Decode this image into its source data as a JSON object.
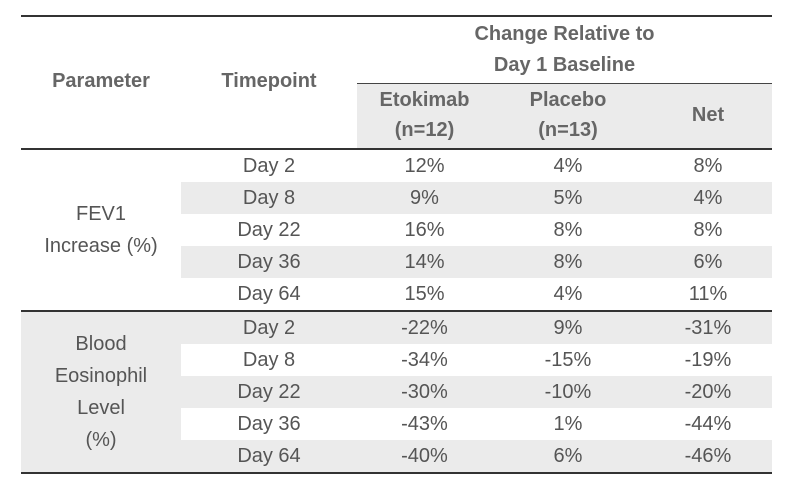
{
  "header": {
    "parameter": "Parameter",
    "timepoint": "Timepoint",
    "change_line1": "Change Relative to",
    "change_line2": "Day 1 Baseline",
    "col_etokimab_1": "Etokimab",
    "col_etokimab_2": "(n=12)",
    "col_placebo_1": "Placebo",
    "col_placebo_2": "(n=13)",
    "col_net": "Net"
  },
  "groups": [
    {
      "label_lines": [
        "FEV1",
        "Increase (%)"
      ],
      "rows": [
        {
          "timepoint": "Day 2",
          "etokimab": "12%",
          "placebo": "4%",
          "net": "8%"
        },
        {
          "timepoint": "Day 8",
          "etokimab": "9%",
          "placebo": "5%",
          "net": "4%"
        },
        {
          "timepoint": "Day 22",
          "etokimab": "16%",
          "placebo": "8%",
          "net": "8%"
        },
        {
          "timepoint": "Day 36",
          "etokimab": "14%",
          "placebo": "8%",
          "net": "6%"
        },
        {
          "timepoint": "Day 64",
          "etokimab": "15%",
          "placebo": "4%",
          "net": "11%"
        }
      ]
    },
    {
      "label_lines": [
        "Blood",
        "Eosinophil",
        "Level",
        "(%)"
      ],
      "rows": [
        {
          "timepoint": "Day 2",
          "etokimab": "-22%",
          "placebo": "9%",
          "net": "-31%"
        },
        {
          "timepoint": "Day 8",
          "etokimab": "-34%",
          "placebo": "-15%",
          "net": "-19%"
        },
        {
          "timepoint": "Day 22",
          "etokimab": "-30%",
          "placebo": "-10%",
          "net": "-20%"
        },
        {
          "timepoint": "Day 36",
          "etokimab": "-43%",
          "placebo": "1%",
          "net": "-44%"
        },
        {
          "timepoint": "Day 64",
          "etokimab": "-40%",
          "placebo": "6%",
          "net": "-46%"
        }
      ]
    }
  ]
}
